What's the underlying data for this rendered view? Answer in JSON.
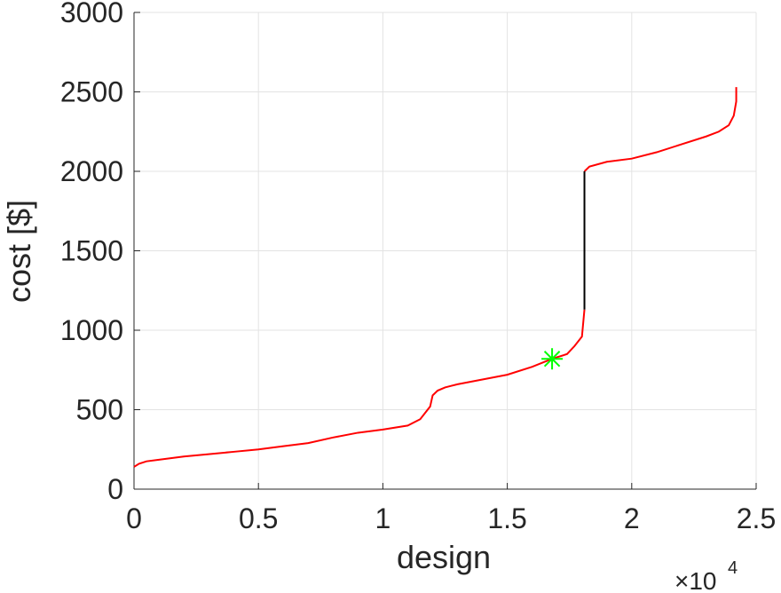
{
  "chart_data": {
    "type": "line",
    "x_label": "design",
    "y_label": "cost [$]",
    "x_multiplier": "×10",
    "x_multiplier_exponent": "4",
    "xlim": [
      0,
      25000
    ],
    "ylim": [
      0,
      3000
    ],
    "xticks": [
      0,
      {
        "value": 5000,
        "label": "0.5"
      },
      {
        "value": 10000,
        "label": "1"
      },
      {
        "value": 15000,
        "label": "1.5"
      },
      {
        "value": 20000,
        "label": "2"
      },
      {
        "value": 25000,
        "label": "2.5"
      }
    ],
    "yticks": [
      0,
      500,
      1000,
      1500,
      2000,
      2500,
      3000
    ],
    "grid": true,
    "series": [
      {
        "color": "#ff0000",
        "marker": "none",
        "x": [
          0,
          200,
          500,
          1000,
          2000,
          3000,
          4000,
          5000,
          6000,
          7000,
          8000,
          9000,
          10000,
          11000,
          11500,
          11900,
          12000,
          12200,
          12500,
          13000,
          14000,
          15000,
          16000,
          16800,
          17400,
          17700,
          18000,
          18100,
          null,
          18100,
          18300,
          19000,
          20000,
          21000,
          22000,
          23000,
          23500,
          23900,
          24100,
          24200,
          24200
        ],
        "values": [
          140,
          160,
          175,
          185,
          205,
          220,
          235,
          250,
          270,
          290,
          325,
          355,
          375,
          400,
          440,
          520,
          590,
          620,
          640,
          660,
          690,
          720,
          770,
          820,
          850,
          900,
          960,
          1130,
          null,
          2000,
          2030,
          2060,
          2080,
          2120,
          2170,
          2220,
          2250,
          2290,
          2350,
          2440,
          2530
        ]
      },
      {
        "color": "#000000",
        "marker": "none",
        "x": [
          18100,
          18100
        ],
        "values": [
          1130,
          2000
        ]
      },
      {
        "color": "#00ff00",
        "marker": "*",
        "x": [
          16800
        ],
        "values": [
          820
        ]
      }
    ]
  }
}
